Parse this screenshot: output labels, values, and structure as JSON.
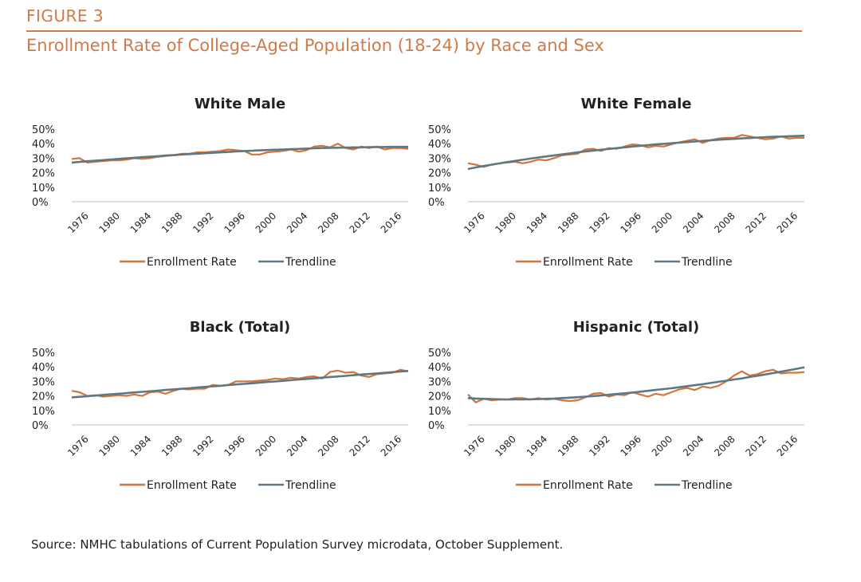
{
  "figure_label": "FIGURE 3",
  "figure_title": "Enrollment Rate of College-Aged Population (18-24) by Race and Sex",
  "source": "Source: NMHC tabulations of Current Population Survey microdata, October Supplement.",
  "colors": {
    "accent": "#d07a4a",
    "enrollment_line": "#d4733a",
    "trend_line": "#5f7782"
  },
  "chart_data": [
    {
      "type": "line",
      "title": "White Male",
      "x": [
        1976,
        1977,
        1978,
        1979,
        1980,
        1981,
        1982,
        1983,
        1984,
        1985,
        1986,
        1987,
        1988,
        1989,
        1990,
        1991,
        1992,
        1993,
        1994,
        1995,
        1996,
        1997,
        1998,
        1999,
        2000,
        2001,
        2002,
        2003,
        2004,
        2005,
        2006,
        2007,
        2008,
        2009,
        2010,
        2011,
        2012,
        2013,
        2014,
        2015,
        2016,
        2017,
        2018,
        2019
      ],
      "xticks": [
        "1976",
        "1980",
        "1984",
        "1988",
        "1992",
        "1996",
        "2000",
        "2004",
        "2008",
        "2012",
        "2016"
      ],
      "yticks": [
        "0%",
        "10%",
        "20%",
        "30%",
        "40%",
        "50%"
      ],
      "ylim": [
        0,
        50
      ],
      "legend_position": "bottom",
      "series": [
        {
          "name": "Enrollment Rate",
          "values": [
            29.5,
            30,
            27,
            27.5,
            28,
            28.5,
            28.5,
            29,
            30,
            29.5,
            30,
            31,
            31.5,
            32,
            33,
            33,
            34,
            34,
            34.5,
            35,
            36,
            35.5,
            35,
            32.5,
            32.5,
            34,
            34.5,
            35,
            36,
            34.5,
            35.5,
            38,
            38.5,
            37.5,
            40,
            37,
            36,
            38,
            37,
            38,
            36,
            37,
            37,
            36.5
          ]
        },
        {
          "name": "Trendline",
          "values": [
            27,
            27.4,
            27.9,
            28.3,
            28.7,
            29.1,
            29.5,
            29.9,
            30.3,
            30.7,
            31,
            31.4,
            31.8,
            32.1,
            32.5,
            32.8,
            33.1,
            33.4,
            33.7,
            34,
            34.3,
            34.6,
            34.9,
            35.1,
            35.4,
            35.6,
            35.8,
            36,
            36.2,
            36.4,
            36.6,
            36.8,
            37,
            37.1,
            37.2,
            37.3,
            37.4,
            37.5,
            37.6,
            37.7,
            37.7,
            37.8,
            37.8,
            37.8
          ]
        }
      ]
    },
    {
      "type": "line",
      "title": "White Female",
      "x": [
        1976,
        1977,
        1978,
        1979,
        1980,
        1981,
        1982,
        1983,
        1984,
        1985,
        1986,
        1987,
        1988,
        1989,
        1990,
        1991,
        1992,
        1993,
        1994,
        1995,
        1996,
        1997,
        1998,
        1999,
        2000,
        2001,
        2002,
        2003,
        2004,
        2005,
        2006,
        2007,
        2008,
        2009,
        2010,
        2011,
        2012,
        2013,
        2014,
        2015,
        2016,
        2017,
        2018,
        2019
      ],
      "xticks": [
        "1976",
        "1980",
        "1984",
        "1988",
        "1992",
        "1996",
        "2000",
        "2004",
        "2008",
        "2012",
        "2016"
      ],
      "yticks": [
        "0%",
        "10%",
        "20%",
        "30%",
        "40%",
        "50%"
      ],
      "ylim": [
        0,
        50
      ],
      "legend_position": "bottom",
      "series": [
        {
          "name": "Enrollment Rate",
          "values": [
            26.5,
            25.5,
            24,
            25.5,
            26.5,
            27,
            27.5,
            26.5,
            27.5,
            29,
            28.5,
            30,
            32,
            32.5,
            33,
            36,
            36.5,
            35,
            37,
            36.5,
            38,
            39.5,
            39,
            37.5,
            38.5,
            38,
            39.5,
            41,
            42,
            43,
            40.5,
            42.5,
            43.5,
            44,
            44,
            46,
            45,
            44,
            43,
            43.5,
            45,
            43.5,
            44,
            44
          ]
        },
        {
          "name": "Trendline",
          "values": [
            22.5,
            23.6,
            24.6,
            25.5,
            26.4,
            27.3,
            28.1,
            28.9,
            29.7,
            30.5,
            31.2,
            31.9,
            32.6,
            33.3,
            34,
            34.6,
            35.2,
            35.8,
            36.4,
            36.9,
            37.5,
            38,
            38.5,
            39,
            39.5,
            39.9,
            40.3,
            40.7,
            41.1,
            41.5,
            41.9,
            42.3,
            42.7,
            43,
            43.3,
            43.6,
            43.9,
            44.2,
            44.5,
            44.7,
            44.9,
            45.1,
            45.3,
            45.5
          ]
        }
      ]
    },
    {
      "type": "line",
      "title": "Black (Total)",
      "x": [
        1976,
        1977,
        1978,
        1979,
        1980,
        1981,
        1982,
        1983,
        1984,
        1985,
        1986,
        1987,
        1988,
        1989,
        1990,
        1991,
        1992,
        1993,
        1994,
        1995,
        1996,
        1997,
        1998,
        1999,
        2000,
        2001,
        2002,
        2003,
        2004,
        2005,
        2006,
        2007,
        2008,
        2009,
        2010,
        2011,
        2012,
        2013,
        2014,
        2015,
        2016,
        2017,
        2018,
        2019
      ],
      "xticks": [
        "1976",
        "1980",
        "1984",
        "1988",
        "1992",
        "1996",
        "2000",
        "2004",
        "2008",
        "2012",
        "2016"
      ],
      "yticks": [
        "0%",
        "10%",
        "20%",
        "30%",
        "40%",
        "50%"
      ],
      "ylim": [
        0,
        50
      ],
      "legend_position": "bottom",
      "series": [
        {
          "name": "Enrollment Rate",
          "values": [
            23.5,
            22.5,
            20,
            20.5,
            19.5,
            20,
            20.5,
            20,
            21,
            20,
            22.5,
            23,
            21.5,
            23.5,
            25,
            24.5,
            25,
            25,
            27.5,
            27,
            27.5,
            30,
            30,
            30,
            30.5,
            31,
            32,
            31.5,
            32.5,
            32,
            33,
            33.5,
            32,
            36.5,
            37.5,
            36,
            36.5,
            34,
            33,
            35,
            35.5,
            36,
            38,
            37
          ]
        },
        {
          "name": "Trendline",
          "values": [
            19,
            19.4,
            19.8,
            20.2,
            20.7,
            21.1,
            21.5,
            21.9,
            22.4,
            22.8,
            23.2,
            23.6,
            24.1,
            24.5,
            24.9,
            25.3,
            25.8,
            26.2,
            26.6,
            27,
            27.5,
            27.9,
            28.3,
            28.7,
            29.2,
            29.6,
            30,
            30.4,
            30.9,
            31.3,
            31.7,
            32.1,
            32.6,
            33,
            33.4,
            33.8,
            34.3,
            34.7,
            35.1,
            35.5,
            36,
            36.4,
            36.8,
            37.2
          ]
        }
      ]
    },
    {
      "type": "line",
      "title": "Hispanic (Total)",
      "x": [
        1976,
        1977,
        1978,
        1979,
        1980,
        1981,
        1982,
        1983,
        1984,
        1985,
        1986,
        1987,
        1988,
        1989,
        1990,
        1991,
        1992,
        1993,
        1994,
        1995,
        1996,
        1997,
        1998,
        1999,
        2000,
        2001,
        2002,
        2003,
        2004,
        2005,
        2006,
        2007,
        2008,
        2009,
        2010,
        2011,
        2012,
        2013,
        2014,
        2015,
        2016,
        2017,
        2018,
        2019
      ],
      "xticks": [
        "1976",
        "1980",
        "1984",
        "1988",
        "1992",
        "1996",
        "2000",
        "2004",
        "2008",
        "2012",
        "2016"
      ],
      "yticks": [
        "0%",
        "10%",
        "20%",
        "30%",
        "40%",
        "50%"
      ],
      "ylim": [
        0,
        50
      ],
      "legend_position": "bottom",
      "series": [
        {
          "name": "Enrollment Rate",
          "values": [
            21,
            15.5,
            18,
            17,
            17.5,
            17.5,
            18.5,
            18.5,
            17.5,
            18.5,
            17.5,
            18,
            17,
            16.5,
            17,
            19,
            21.5,
            22,
            19.5,
            21,
            20.5,
            22.5,
            21,
            19.5,
            21.5,
            20.5,
            22.5,
            24.5,
            25.5,
            24,
            26.5,
            25.5,
            27,
            30,
            34,
            37,
            34,
            35,
            37,
            38,
            35.5,
            36,
            36,
            36.5
          ]
        },
        {
          "name": "Trendline",
          "values": [
            18.5,
            18.2,
            18,
            17.8,
            17.7,
            17.6,
            17.6,
            17.6,
            17.7,
            17.8,
            18,
            18.2,
            18.5,
            18.8,
            19.1,
            19.5,
            19.9,
            20.3,
            20.8,
            21.3,
            21.8,
            22.3,
            22.9,
            23.5,
            24.1,
            24.7,
            25.3,
            26,
            26.7,
            27.4,
            28.1,
            28.9,
            29.7,
            30.5,
            31.3,
            32.1,
            33,
            33.9,
            34.8,
            35.7,
            36.7,
            37.7,
            38.7,
            39.7
          ]
        }
      ]
    }
  ]
}
